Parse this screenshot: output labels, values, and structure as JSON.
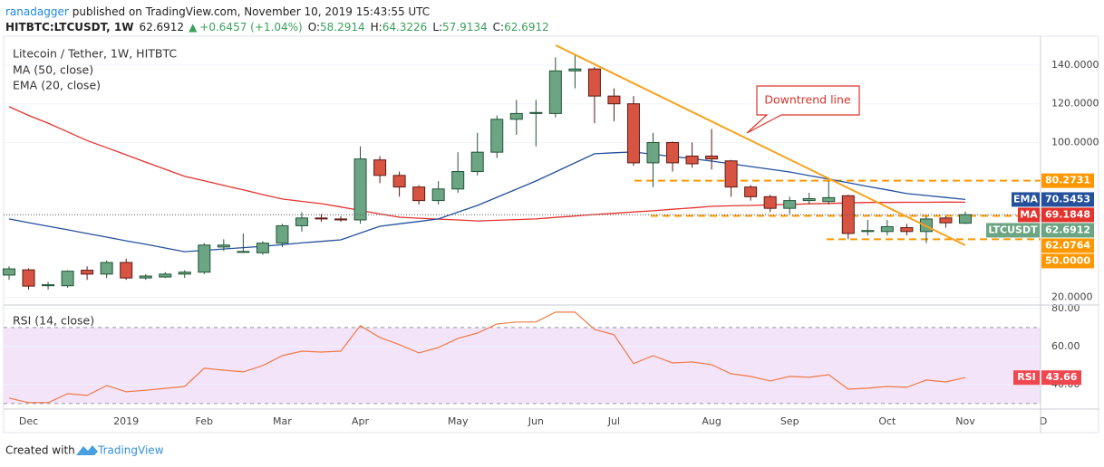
{
  "header": {
    "user": "ranadagger",
    "published": "published on TradingView.com, November 10, 2019 15:43:55 UTC",
    "symbol": "HITBTC:LTCUSDT, 1W",
    "arrow": "▲",
    "change": "+0.6457 (+1.04%)",
    "ohlc_keys": [
      "O:",
      "H:",
      "L:",
      "C:"
    ]
  },
  "footer": {
    "created": "Created with",
    "brand": "TradingView"
  },
  "chart_data": [
    {
      "type": "candlestick",
      "title": "Litecoin / Tether, 1W, HITBTC",
      "annotation": "Downtrend line",
      "categories": [
        null,
        "Dec",
        null,
        null,
        null,
        null,
        "2019",
        null,
        null,
        null,
        "Feb",
        null,
        null,
        null,
        "Mar",
        null,
        null,
        null,
        "Apr",
        null,
        null,
        null,
        null,
        "May",
        null,
        null,
        null,
        "Jun",
        null,
        null,
        null,
        "Jul",
        null,
        null,
        null,
        null,
        "Aug",
        null,
        null,
        null,
        "Sep",
        null,
        null,
        null,
        null,
        "Oct",
        null,
        null,
        null,
        "Nov",
        null,
        null,
        null,
        "D"
      ],
      "open": [
        31.5,
        34.2,
        26,
        26,
        34,
        32,
        38,
        30,
        30.5,
        32,
        33,
        46,
        43.7,
        43,
        48,
        57,
        61,
        60.5,
        60,
        91,
        83,
        77,
        70,
        76,
        85,
        95,
        112,
        115,
        115,
        137,
        138,
        124,
        120,
        89.5,
        100,
        93,
        93,
        90.5,
        77,
        72,
        66,
        70,
        69.5,
        72.5,
        54,
        54,
        56,
        54,
        61,
        58.2914,
        null,
        null,
        null,
        null
      ],
      "high": [
        36,
        35,
        28,
        34,
        36,
        39,
        40,
        32,
        33,
        34,
        48,
        50,
        53,
        49,
        58,
        64,
        63,
        62,
        98,
        93,
        85,
        78,
        80,
        95,
        105,
        114,
        122,
        122,
        144,
        145,
        139,
        128,
        124,
        105,
        100.5,
        100,
        107,
        91,
        78,
        73,
        72,
        74,
        80,
        73,
        60,
        60,
        58,
        62,
        62,
        64.3226,
        null,
        null,
        null,
        null
      ],
      "low": [
        29,
        24,
        24,
        25,
        29,
        30,
        29,
        29,
        30,
        30,
        32,
        44,
        43,
        42,
        46,
        54,
        59,
        59,
        58,
        79,
        72,
        68,
        68,
        74,
        83,
        92,
        104,
        98,
        113,
        128,
        110,
        111,
        88,
        77,
        85,
        87,
        86,
        72,
        70,
        64,
        63,
        68,
        68,
        50,
        52,
        52,
        52,
        48,
        56,
        57.9134,
        null,
        null,
        null,
        null
      ],
      "close": [
        34.7,
        25.8,
        26.5,
        33.5,
        32,
        38,
        30,
        31,
        32,
        33,
        47,
        47,
        43.7,
        48,
        57,
        61,
        60.5,
        60,
        91.5,
        83,
        77,
        70,
        76,
        85,
        95,
        112,
        115,
        115.5,
        137,
        138,
        124,
        120,
        89.5,
        100,
        89.5,
        89,
        91.5,
        77,
        72,
        66,
        70,
        71,
        71.5,
        53,
        54.5,
        56.5,
        54,
        60.5,
        58.5,
        62.6912,
        null,
        null,
        null,
        null
      ],
      "close_tag": "LTCUSDT",
      "up_color": "#6ba583",
      "down_color": "#d75442",
      "series": [
        {
          "name": "MA (50, close)",
          "tag": "MA",
          "color": "#e5322d",
          "values": [
            118.5,
            114,
            110,
            105.5,
            101,
            97.3,
            93.6,
            89.9,
            86.2,
            82.5,
            80.2,
            77.8,
            75.5,
            73.1,
            70.8,
            69.6,
            68.4,
            66.7,
            64.9,
            63.1,
            61.4,
            60.9,
            60.4,
            60,
            59.5,
            59.8,
            60.2,
            60.5,
            61.3,
            62,
            62.8,
            63.4,
            64.1,
            64.7,
            65.5,
            66.2,
            67,
            67.3,
            67.5,
            67.8,
            68,
            68.3,
            68.5,
            68.8,
            69,
            69,
            69.1,
            69.1,
            69.2,
            69.1848,
            null,
            null,
            null,
            null
          ]
        },
        {
          "name": "EMA (20, close)",
          "tag": "EMA",
          "color": "#24509c",
          "values": [
            60.5,
            58.6,
            56.7,
            54.9,
            53,
            51.1,
            49.2,
            47.4,
            45.5,
            43.6,
            44.3,
            45,
            45.7,
            46.4,
            47.2,
            48.1,
            48.9,
            49.7,
            53.2,
            56.7,
            58,
            59.2,
            60.5,
            64,
            67.5,
            71.7,
            75.9,
            80.1,
            84.8,
            89.5,
            94.2,
            94.7,
            95.1,
            93.9,
            92.8,
            91.6,
            90.4,
            89,
            87.6,
            86.2,
            84.8,
            82.9,
            81.1,
            79.2,
            77.3,
            75.5,
            73.6,
            72.6,
            71.6,
            70.5453,
            null,
            null,
            null,
            null
          ]
        }
      ],
      "levels": [
        80.2731,
        62.0764,
        {
          "value": 50,
          "label": "50.0000"
        }
      ],
      "level_color": "#ff9800",
      "ylim": [
        16.5,
        154
      ],
      "yticks": [
        {
          "value": 20,
          "label": "20.0000"
        },
        {
          "value": 100,
          "label": "100.0000"
        },
        {
          "value": 120,
          "label": "120.0000"
        },
        {
          "value": 140,
          "label": "140.0000"
        }
      ],
      "grid": true
    },
    {
      "type": "line",
      "title": "RSI (14, close)",
      "series": [
        {
          "name": "RSI",
          "color": "#f07a45",
          "values": [
            32.9,
            30.5,
            30.5,
            35.2,
            34.3,
            39.5,
            36.2,
            37,
            38,
            39,
            48.6,
            47.6,
            46.7,
            50,
            55.2,
            57.6,
            57.1,
            57.6,
            71,
            64.8,
            61,
            56.7,
            59.5,
            64.3,
            67.1,
            71.9,
            72.9,
            72.9,
            78.1,
            78.1,
            69,
            66.2,
            51,
            55.2,
            51.4,
            51.9,
            50.5,
            45.7,
            44.3,
            41.9,
            44.3,
            43.8,
            45.2,
            37.6,
            38.1,
            39,
            38.6,
            42.4,
            41.4,
            43.66,
            null,
            null,
            null,
            null
          ]
        }
      ],
      "label_color": "#f0474f",
      "band": [
        30,
        70
      ],
      "band_color": "#f3e4fa",
      "ylim": [
        27.1,
        81.4
      ],
      "yticks": [
        {
          "value": 40,
          "label": "40.00"
        },
        {
          "value": 60,
          "label": "60.00"
        },
        {
          "value": 80,
          "label": "80.00"
        }
      ]
    }
  ]
}
